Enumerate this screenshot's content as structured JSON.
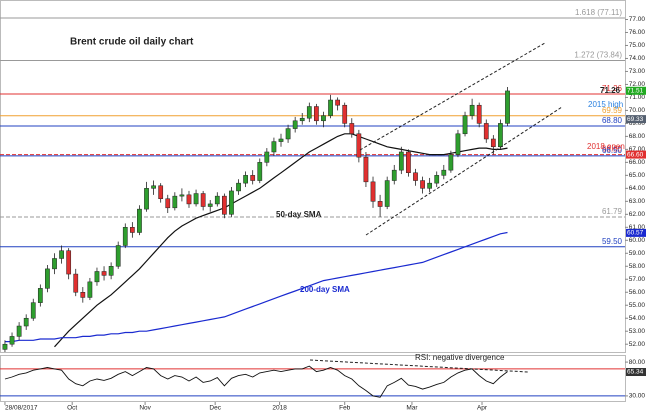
{
  "chart_data": {
    "type": "candlestick",
    "title": "Brent crude oil daily chart",
    "annotations": [
      "50-day SMA",
      "200-day SMA",
      "RSI: negative divergence",
      "2015 high",
      "2018 open",
      "71.26"
    ],
    "xlim": [
      -0.7,
      87.6
    ],
    "xticks": [
      {
        "value": 0,
        "label": "28/08/2017"
      },
      {
        "value": 9.5,
        "label": "Oct"
      },
      {
        "value": 19.8,
        "label": "Nov"
      },
      {
        "value": 29.7,
        "label": "Dec"
      },
      {
        "value": 38.8,
        "label": "2018"
      },
      {
        "value": 48,
        "label": "Feb"
      },
      {
        "value": 57.5,
        "label": "Mar"
      },
      {
        "value": 67.4,
        "label": "Apr"
      }
    ],
    "ylim": [
      51.4,
      78.5
    ],
    "yticks": [
      {
        "value": 52,
        "label": "52.00"
      },
      {
        "value": 53,
        "label": "53.00"
      },
      {
        "value": 54,
        "label": "54.00"
      },
      {
        "value": 55,
        "label": "55.00"
      },
      {
        "value": 56,
        "label": "56.00"
      },
      {
        "value": 57,
        "label": "57.00"
      },
      {
        "value": 58,
        "label": "58.00"
      },
      {
        "value": 59,
        "label": "59.00"
      },
      {
        "value": 60,
        "label": "60.00"
      },
      {
        "value": 61,
        "label": "61.00"
      },
      {
        "value": 62,
        "label": "62.00"
      },
      {
        "value": 63,
        "label": "63.00"
      },
      {
        "value": 64,
        "label": "64.00"
      },
      {
        "value": 65,
        "label": "65.00"
      },
      {
        "value": 66,
        "label": "66.00"
      },
      {
        "value": 67,
        "label": "67.00"
      },
      {
        "value": 68,
        "label": "68.00"
      },
      {
        "value": 69,
        "label": "69.00"
      },
      {
        "value": 70,
        "label": "70.00"
      },
      {
        "value": 71,
        "label": "71.00"
      },
      {
        "value": 72,
        "label": "72.00"
      },
      {
        "value": 73,
        "label": "73.00"
      },
      {
        "value": 74,
        "label": "74.00"
      },
      {
        "value": 75,
        "label": "75.00"
      },
      {
        "value": 76,
        "label": "76.00"
      },
      {
        "value": 77,
        "label": "77.00"
      }
    ],
    "up_color": "#2e9e2e",
    "down_color": "#e03030",
    "ohlc": [
      [
        51.6,
        52.3,
        51.4,
        52.0
      ],
      [
        52.0,
        52.9,
        51.8,
        52.6
      ],
      [
        52.6,
        53.7,
        52.3,
        53.4
      ],
      [
        53.4,
        54.3,
        53.1,
        54.0
      ],
      [
        54.0,
        55.5,
        53.8,
        55.2
      ],
      [
        55.2,
        56.6,
        54.9,
        56.3
      ],
      [
        56.3,
        58.1,
        56.0,
        57.8
      ],
      [
        57.8,
        59.0,
        57.4,
        58.6
      ],
      [
        58.6,
        59.6,
        58.2,
        59.2
      ],
      [
        59.2,
        59.4,
        57.0,
        57.4
      ],
      [
        57.4,
        57.8,
        55.7,
        56.0
      ],
      [
        56.0,
        56.4,
        55.2,
        55.6
      ],
      [
        55.6,
        57.1,
        55.4,
        56.8
      ],
      [
        56.8,
        57.9,
        56.5,
        57.6
      ],
      [
        57.6,
        58.0,
        56.9,
        57.3
      ],
      [
        57.3,
        58.3,
        57.0,
        58.0
      ],
      [
        58.0,
        59.9,
        57.8,
        59.6
      ],
      [
        59.6,
        61.3,
        59.4,
        61.0
      ],
      [
        61.0,
        61.4,
        60.2,
        60.6
      ],
      [
        60.6,
        62.7,
        60.4,
        62.4
      ],
      [
        62.4,
        64.5,
        62.2,
        64.0
      ],
      [
        64.0,
        64.6,
        63.5,
        64.2
      ],
      [
        64.2,
        64.4,
        62.9,
        63.2
      ],
      [
        63.2,
        63.5,
        62.1,
        62.5
      ],
      [
        62.5,
        63.7,
        62.3,
        63.4
      ],
      [
        63.4,
        64.0,
        63.0,
        63.5
      ],
      [
        63.5,
        63.8,
        62.5,
        62.8
      ],
      [
        62.8,
        63.9,
        62.6,
        63.6
      ],
      [
        63.6,
        63.8,
        62.3,
        62.6
      ],
      [
        62.6,
        63.1,
        62.2,
        62.8
      ],
      [
        62.8,
        63.7,
        62.6,
        63.4
      ],
      [
        63.4,
        63.6,
        61.7,
        62.0
      ],
      [
        62.0,
        64.1,
        61.8,
        63.8
      ],
      [
        63.8,
        64.7,
        63.5,
        64.4
      ],
      [
        64.4,
        65.3,
        64.1,
        65.0
      ],
      [
        65.0,
        65.4,
        64.3,
        64.6
      ],
      [
        64.6,
        66.3,
        64.4,
        66.0
      ],
      [
        66.0,
        67.1,
        65.7,
        66.8
      ],
      [
        66.8,
        67.9,
        66.5,
        67.6
      ],
      [
        67.6,
        68.2,
        67.2,
        67.8
      ],
      [
        67.8,
        68.9,
        67.5,
        68.6
      ],
      [
        68.6,
        69.5,
        68.3,
        69.2
      ],
      [
        69.2,
        69.8,
        68.9,
        69.4
      ],
      [
        69.4,
        70.6,
        69.1,
        70.3
      ],
      [
        70.3,
        70.5,
        68.9,
        69.2
      ],
      [
        69.2,
        69.9,
        68.7,
        69.6
      ],
      [
        69.6,
        71.2,
        69.4,
        70.8
      ],
      [
        70.8,
        71.0,
        70.0,
        70.4
      ],
      [
        70.4,
        70.6,
        68.7,
        69.0
      ],
      [
        69.0,
        69.4,
        67.9,
        68.2
      ],
      [
        68.2,
        68.5,
        66.0,
        66.4
      ],
      [
        66.4,
        66.8,
        64.1,
        64.5
      ],
      [
        64.5,
        64.9,
        62.5,
        63.0
      ],
      [
        63.0,
        63.5,
        61.8,
        62.6
      ],
      [
        62.6,
        64.9,
        62.4,
        64.6
      ],
      [
        64.6,
        65.8,
        64.3,
        65.4
      ],
      [
        65.4,
        67.2,
        65.1,
        66.8
      ],
      [
        66.8,
        67.0,
        64.9,
        65.2
      ],
      [
        65.2,
        65.5,
        64.2,
        64.6
      ],
      [
        64.6,
        64.9,
        63.6,
        64.0
      ],
      [
        64.0,
        64.8,
        63.7,
        64.4
      ],
      [
        64.4,
        65.3,
        64.1,
        65.0
      ],
      [
        65.0,
        65.8,
        64.7,
        65.4
      ],
      [
        65.4,
        66.9,
        65.2,
        66.6
      ],
      [
        66.6,
        68.5,
        66.4,
        68.2
      ],
      [
        68.2,
        69.9,
        68.0,
        69.6
      ],
      [
        69.6,
        70.9,
        69.3,
        70.4
      ],
      [
        70.4,
        70.6,
        68.7,
        69.0
      ],
      [
        69.0,
        69.3,
        67.5,
        67.8
      ],
      [
        67.8,
        68.1,
        66.6,
        67.2
      ],
      [
        67.2,
        69.3,
        67.0,
        69.0
      ],
      [
        69.0,
        71.8,
        68.8,
        71.5
      ]
    ],
    "series": [
      {
        "color": "#111111",
        "values": [
          null,
          null,
          null,
          null,
          null,
          null,
          null,
          51.8,
          52.4,
          53.0,
          53.5,
          54.0,
          54.5,
          55.0,
          55.4,
          55.8,
          56.3,
          56.8,
          57.3,
          57.8,
          58.4,
          59.0,
          59.6,
          60.2,
          60.7,
          61.1,
          61.4,
          61.7,
          61.9,
          62.1,
          62.3,
          62.5,
          62.8,
          63.1,
          63.4,
          63.7,
          64.0,
          64.4,
          64.8,
          65.2,
          65.6,
          66.0,
          66.4,
          66.8,
          67.1,
          67.4,
          67.7,
          68.0,
          68.2,
          68.2,
          68.0,
          67.8,
          67.6,
          67.4,
          67.2,
          67.1,
          67.0,
          66.9,
          66.8,
          66.7,
          66.6,
          66.6,
          66.6,
          66.7,
          66.8,
          66.9,
          67.0,
          67.1,
          67.1,
          67.0,
          67.0,
          67.1
        ]
      },
      {
        "color": "#1a2ad0",
        "values": [
          52.2,
          52.2,
          52.3,
          52.3,
          52.3,
          52.4,
          52.4,
          52.4,
          52.5,
          52.5,
          52.5,
          52.6,
          52.6,
          52.7,
          52.7,
          52.8,
          52.8,
          52.9,
          52.9,
          53.0,
          53.0,
          53.1,
          53.2,
          53.3,
          53.4,
          53.5,
          53.6,
          53.7,
          53.8,
          53.9,
          54.0,
          54.1,
          54.3,
          54.5,
          54.7,
          54.9,
          55.1,
          55.3,
          55.5,
          55.7,
          55.9,
          56.1,
          56.3,
          56.5,
          56.7,
          56.9,
          57.0,
          57.1,
          57.2,
          57.3,
          57.4,
          57.5,
          57.6,
          57.7,
          57.8,
          57.9,
          58.0,
          58.1,
          58.2,
          58.3,
          58.5,
          58.7,
          58.9,
          59.1,
          59.3,
          59.5,
          59.7,
          59.9,
          60.1,
          60.3,
          60.5,
          60.6
        ]
      }
    ],
    "levels": [
      {
        "value": 77.11,
        "label": "1.618 (77.11)",
        "color": "#999999",
        "dashed": false
      },
      {
        "value": 73.84,
        "label": "1.272 (73.84)",
        "color": "#999999",
        "dashed": false
      },
      {
        "value": 71.26,
        "label": "71.26",
        "color": "#e03030",
        "dashed": false
      },
      {
        "value": 69.59,
        "label": "69.59",
        "color": "#f0a030",
        "dashed": false
      },
      {
        "value": 68.8,
        "label": "68.80",
        "color": "#2040c0",
        "dashed": false
      },
      {
        "value": 66.6,
        "label": "66.60",
        "color": "#e03030",
        "dashed": true
      },
      {
        "value": 66.5,
        "label": "66.50",
        "color": "#2040c0",
        "dashed": false
      },
      {
        "value": 61.79,
        "label": "61.79",
        "color": "#999999",
        "dashed": true
      },
      {
        "value": 59.5,
        "label": "59.50",
        "color": "#2040c0",
        "dashed": false
      }
    ],
    "tags": [
      {
        "value": 71.51,
        "color": "#22aa22"
      },
      {
        "value": 69.33,
        "color": "#556070"
      },
      {
        "value": 66.6,
        "label": "66.60",
        "color": "#e03030"
      },
      {
        "value": 60.57,
        "color": "#1a2ad0"
      }
    ],
    "rsi": {
      "values": [
        55,
        58,
        62,
        64,
        68,
        70,
        72,
        70,
        68,
        55,
        48,
        45,
        52,
        55,
        53,
        56,
        62,
        66,
        60,
        66,
        72,
        70,
        60,
        55,
        60,
        58,
        52,
        58,
        50,
        52,
        57,
        45,
        56,
        60,
        62,
        58,
        64,
        66,
        68,
        66,
        68,
        70,
        70,
        74,
        66,
        68,
        72,
        68,
        60,
        55,
        45,
        38,
        30,
        28,
        45,
        50,
        56,
        46,
        44,
        40,
        43,
        47,
        50,
        58,
        64,
        68,
        70,
        60,
        52,
        48,
        58,
        66
      ],
      "color": "#111111",
      "ylim": [
        21,
        89
      ],
      "yticks": [
        {
          "value": 80,
          "label": "80.00"
        },
        {
          "value": 30,
          "label": "30.00"
        }
      ],
      "levels": [
        {
          "value": 70,
          "color": "#e03030"
        },
        {
          "value": 30,
          "color": "#2040c0"
        }
      ],
      "tag": {
        "value": 65.34,
        "color": "#333333"
      }
    }
  }
}
